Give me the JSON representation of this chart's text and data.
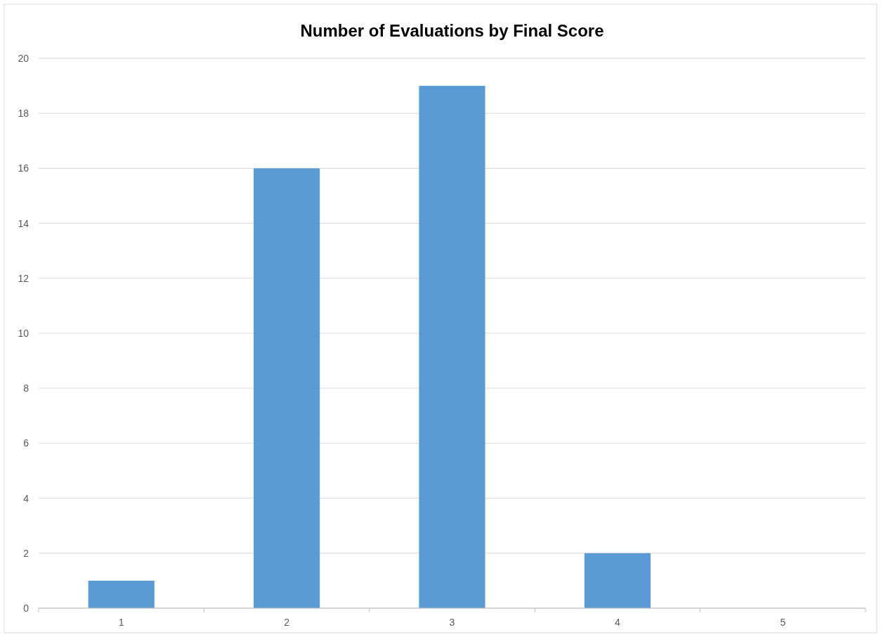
{
  "chart_data": {
    "type": "bar",
    "title": "Number of Evaluations by Final Score",
    "categories": [
      "1",
      "2",
      "3",
      "4",
      "5"
    ],
    "values": [
      1,
      16,
      19,
      2,
      0
    ],
    "color": "#5b9bd5",
    "ylim": [
      0,
      20
    ],
    "yticks": [
      0,
      2,
      4,
      6,
      8,
      10,
      12,
      14,
      16,
      18,
      20
    ],
    "grid": "y",
    "legend": false
  }
}
